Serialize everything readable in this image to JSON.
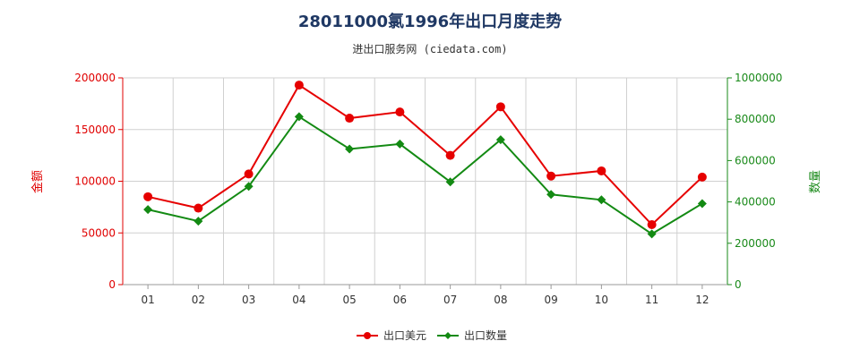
{
  "title": "28011000氯1996年出口月度走势",
  "subtitle": "进出口服务网 (ciedata.com)",
  "colors": {
    "usd": "#e60000",
    "qty": "#138a13",
    "left_axis": "#e00000",
    "right_axis": "#1a8a1a",
    "title": "#1f3864"
  },
  "chart_data": {
    "type": "line",
    "categories": [
      "01",
      "02",
      "03",
      "04",
      "05",
      "06",
      "07",
      "08",
      "09",
      "10",
      "11",
      "12"
    ],
    "series": [
      {
        "name": "出口美元",
        "axis": "left",
        "color": "#e60000",
        "marker": "circle",
        "values": [
          85000,
          74000,
          107000,
          193000,
          161000,
          167000,
          125000,
          172000,
          105000,
          110000,
          58000,
          104000
        ]
      },
      {
        "name": "出口数量",
        "axis": "right",
        "color": "#138a13",
        "marker": "diamond",
        "values": [
          363000,
          307000,
          475000,
          812000,
          656000,
          680000,
          497000,
          701000,
          436000,
          410000,
          245000,
          392000
        ]
      }
    ],
    "left_axis": {
      "label": "金额",
      "ylim": [
        0,
        200000
      ],
      "ticks": [
        "0",
        "50000",
        "100000",
        "150000",
        "200000"
      ]
    },
    "right_axis": {
      "label": "数量",
      "ylim": [
        0,
        1000000
      ],
      "ticks": [
        "0",
        "200000",
        "400000",
        "600000",
        "800000",
        "1000000"
      ]
    },
    "grid": true,
    "legend_position": "bottom"
  }
}
